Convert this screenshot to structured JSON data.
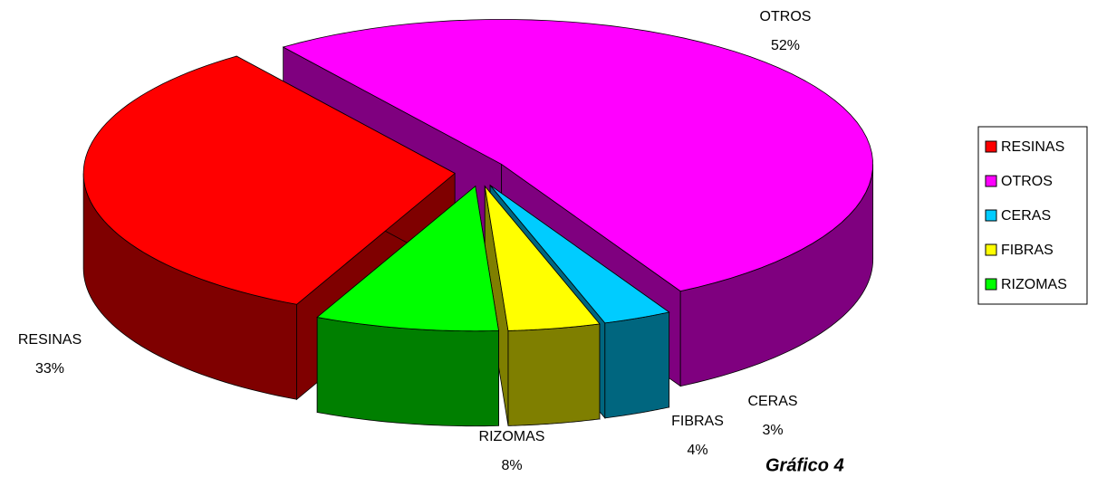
{
  "chart_data": {
    "type": "pie3d",
    "categories": [
      "RESINAS",
      "OTROS",
      "CERAS",
      "FIBRAS",
      "RIZOMAS"
    ],
    "values": [
      33,
      52,
      3,
      4,
      8
    ],
    "value_labels": [
      "33%",
      "52%",
      "3%",
      "4%",
      "8%"
    ],
    "colors": [
      "#ff0000",
      "#ff00ff",
      "#00ccff",
      "#ffff00",
      "#00ff00"
    ],
    "legend": "right",
    "caption": "Gráfico 4"
  }
}
